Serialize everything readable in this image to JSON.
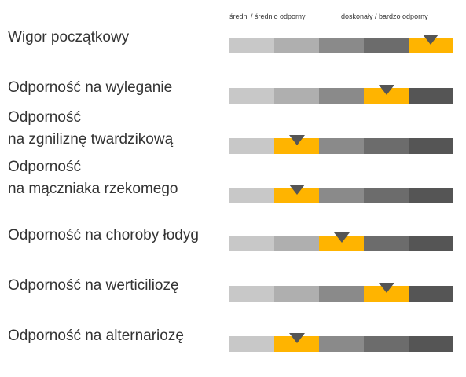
{
  "scale": {
    "low_label": "średni / średnio odporny",
    "high_label": "doskonały / bardzo odporny"
  },
  "colors": {
    "segments": [
      "#c8c8c8",
      "#afafaf",
      "#8a8a8a",
      "#6c6c6c",
      "#555555"
    ],
    "highlight": "#ffb400",
    "marker": "#555555",
    "text": "#333333"
  },
  "traits": [
    {
      "lines": [
        "Wigor początkowy"
      ],
      "level": 5
    },
    {
      "lines": [
        "Odporność na wyleganie"
      ],
      "level": 4
    },
    {
      "lines": [
        "Odporność",
        "na zgniliznę twardzikową"
      ],
      "level": 2
    },
    {
      "lines": [
        "Odporność",
        "na mączniaka rzekomego"
      ],
      "level": 2
    },
    {
      "lines": [
        "Odporność na choroby łodyg"
      ],
      "level": 3
    },
    {
      "lines": [
        "Odporność na werticiliozę"
      ],
      "level": 4
    },
    {
      "lines": [
        "Odporność na alternariozę"
      ],
      "level": 2
    }
  ]
}
